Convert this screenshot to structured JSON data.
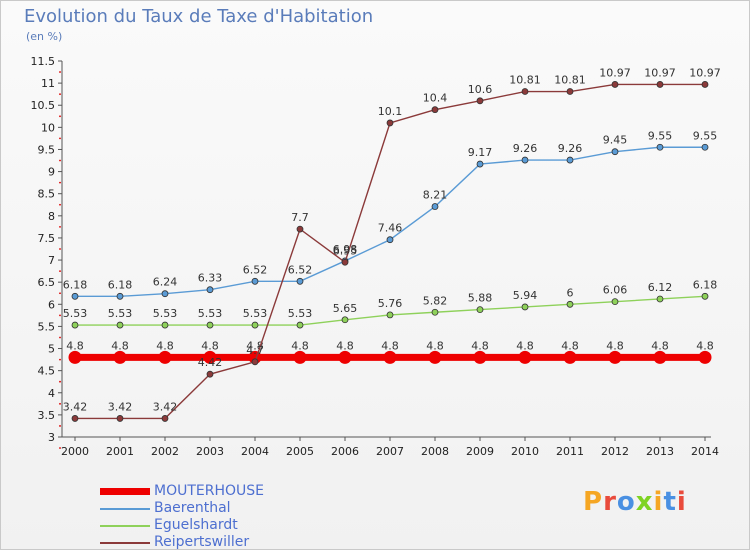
{
  "chart_data": {
    "type": "line",
    "title": "Evolution du Taux de Taxe d'Habitation",
    "subtitle": "(en %)",
    "ylim": [
      3,
      11.5
    ],
    "yticks": [
      "3",
      "3.5",
      "4",
      "4.5",
      "5",
      "5.5",
      "6",
      "6.5",
      "7",
      "7.5",
      "8",
      "8.5",
      "9",
      "9.5",
      "10",
      "10.5",
      "11",
      "11.5"
    ],
    "x": [
      "2000",
      "2001",
      "2002",
      "2003",
      "2004",
      "2005",
      "2006",
      "2007",
      "2008",
      "2009",
      "2010",
      "2011",
      "2012",
      "2013",
      "2014"
    ],
    "series": [
      {
        "name": "MOUTERHOUSE",
        "color": "#ee0000",
        "thick": true,
        "values": [
          4.8,
          4.8,
          4.8,
          4.8,
          4.8,
          4.8,
          4.8,
          4.8,
          4.8,
          4.8,
          4.8,
          4.8,
          4.8,
          4.8,
          4.8
        ],
        "labels": [
          "4.8",
          "4.8",
          "4.8",
          "4.8",
          "4.8",
          "4.8",
          "4.8",
          "4.8",
          "4.8",
          "4.8",
          "4.8",
          "4.8",
          "4.8",
          "4.8",
          "4.8"
        ]
      },
      {
        "name": "Baerenthal",
        "color": "#5a9bd5",
        "values": [
          6.18,
          6.18,
          6.24,
          6.33,
          6.52,
          6.52,
          6.98,
          7.46,
          8.21,
          9.17,
          9.26,
          9.26,
          9.45,
          9.55,
          9.55
        ],
        "labels": [
          "6.18",
          "6.18",
          "6.24",
          "6.33",
          "6.52",
          "6.52",
          "6.98",
          "7.46",
          "8.21",
          "9.17",
          "9.26",
          "9.26",
          "9.45",
          "9.55",
          "9.55"
        ]
      },
      {
        "name": "Eguelshardt",
        "color": "#8ed15a",
        "values": [
          5.53,
          5.53,
          5.53,
          5.53,
          5.53,
          5.53,
          5.65,
          5.76,
          5.82,
          5.88,
          5.94,
          6,
          6.06,
          6.12,
          6.18
        ],
        "labels": [
          "5.53",
          "5.53",
          "5.53",
          "5.53",
          "5.53",
          "5.53",
          "5.65",
          "5.76",
          "5.82",
          "5.88",
          "5.94",
          "6",
          "6.06",
          "6.12",
          "6.18"
        ]
      },
      {
        "name": "Reipertswiller",
        "color": "#8b3a3a",
        "values": [
          3.42,
          3.42,
          3.42,
          4.42,
          4.7,
          7.7,
          6.95,
          10.1,
          10.4,
          10.6,
          10.81,
          10.81,
          10.97,
          10.97,
          10.97
        ],
        "labels": [
          "3.42",
          "3.42",
          "3.42",
          "4.42",
          "4.7",
          "7.7",
          "6.95",
          "10.1",
          "10.4",
          "10.6",
          "10.81",
          "10.81",
          "10.97",
          "10.97",
          "10.97"
        ]
      }
    ],
    "grid": false,
    "legend_position": "bottom-left"
  },
  "logo": {
    "text": "Proxiti",
    "colors": [
      "#f5a623",
      "#e94b3c",
      "#4a90e2",
      "#7ed321",
      "#f5a623",
      "#4a90e2",
      "#e94b3c"
    ]
  }
}
